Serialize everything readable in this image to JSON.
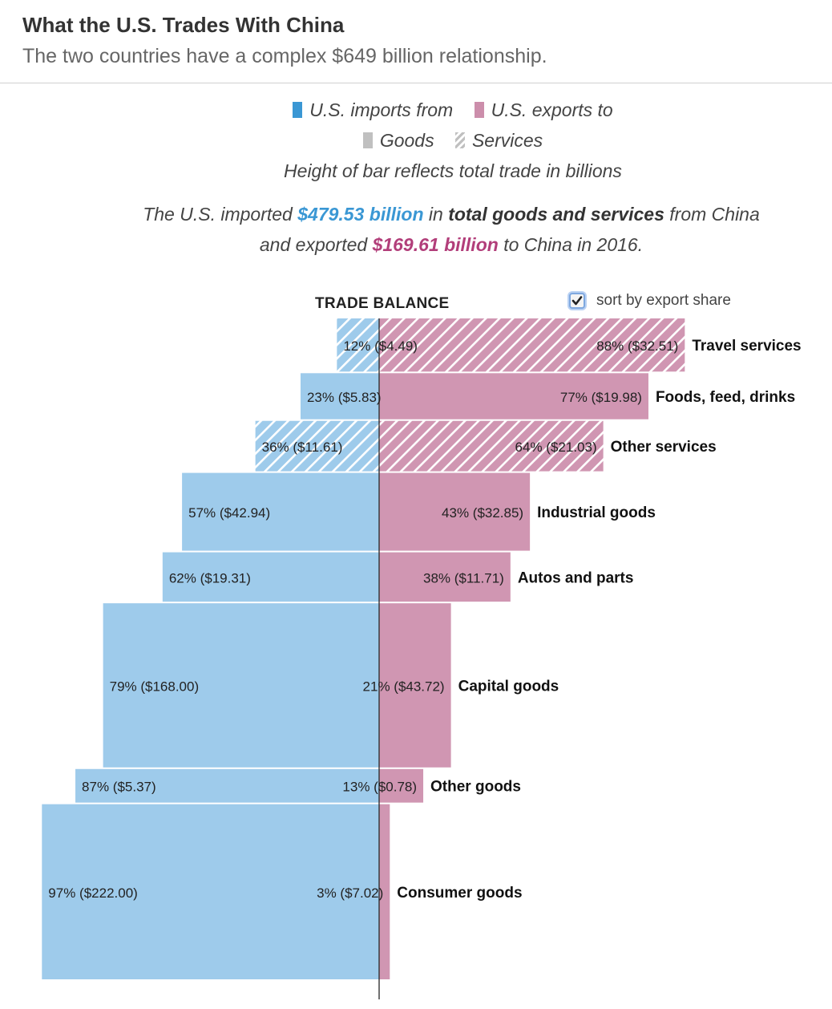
{
  "header": {
    "title": "What the U.S. Trades With China",
    "subtitle": "The two countries have a complex $649 billion relationship."
  },
  "legend": {
    "imports_label": "U.S. imports from",
    "exports_label": "U.S. exports to",
    "goods_label": "Goods",
    "services_label": "Services",
    "note": "Height of bar reflects total trade in billions"
  },
  "summary": {
    "line1_prefix": "The U.S. imported",
    "import_total": "$479.53 billion",
    "line1_mid": "in",
    "line1_strong": "total goods and services",
    "line1_suffix": "from China",
    "line2_prefix": "and exported",
    "export_total": "$169.61 billion",
    "line2_suffix": "to China in 2016."
  },
  "controls": {
    "trade_balance_label": "TRADE BALANCE",
    "sort_label": "sort by export share",
    "sort_checked": true
  },
  "colors": {
    "imports": "#9ecbeb",
    "exports": "#d096b2",
    "imports_accent": "#3a97d4",
    "exports_accent": "#b23e7a"
  },
  "chart_data": {
    "type": "bar",
    "title": "What the U.S. Trades With China",
    "sorted_by": "export share",
    "units": "billions of dollars",
    "categories": [
      {
        "name": "Travel services",
        "kind": "services",
        "import_share": "12%",
        "import_value": 4.49,
        "export_share": "88%",
        "export_value": 32.51
      },
      {
        "name": "Foods, feed, drinks",
        "kind": "goods",
        "import_share": "23%",
        "import_value": 5.83,
        "export_share": "77%",
        "export_value": 19.98
      },
      {
        "name": "Other services",
        "kind": "services",
        "import_share": "36%",
        "import_value": 11.61,
        "export_share": "64%",
        "export_value": 21.03
      },
      {
        "name": "Industrial goods",
        "kind": "goods",
        "import_share": "57%",
        "import_value": 42.94,
        "export_share": "43%",
        "export_value": 32.85
      },
      {
        "name": "Autos and parts",
        "kind": "goods",
        "import_share": "62%",
        "import_value": 19.31,
        "export_share": "38%",
        "export_value": 11.71
      },
      {
        "name": "Capital goods",
        "kind": "goods",
        "import_share": "79%",
        "import_value": 168.0,
        "export_share": "21%",
        "export_value": 43.72
      },
      {
        "name": "Other goods",
        "kind": "goods",
        "import_share": "87%",
        "import_value": 5.37,
        "export_share": "13%",
        "export_value": 0.78
      },
      {
        "name": "Consumer goods",
        "kind": "goods",
        "import_share": "97%",
        "import_value": 222.0,
        "export_share": "3%",
        "export_value": 7.02
      }
    ]
  }
}
